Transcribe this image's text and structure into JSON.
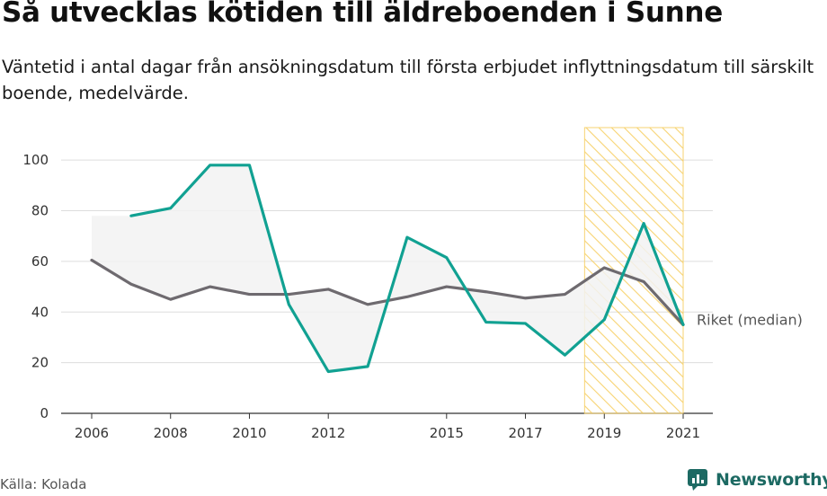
{
  "header": {
    "title": "Så utvecklas kötiden till äldreboenden i Sunne",
    "subtitle": "Väntetid i antal dagar från ansökningsdatum till första erbjudet inflyttningsdatum till särskilt boende, medelvärde."
  },
  "footer": {
    "source": "Källa: Kolada",
    "brand": "Newsworthy"
  },
  "colors": {
    "sunne": "#11a192",
    "riket": "#6e6a6f",
    "highlight_hatch": "#f7cf63",
    "band_fill": "#f2f2f2",
    "grid": "#dddddd",
    "brand": "#1d6a63"
  },
  "chart_data": {
    "type": "line",
    "title": "Så utvecklas kötiden till äldreboenden i Sunne",
    "xlabel": "",
    "ylabel": "",
    "xlim": [
      2006,
      2021
    ],
    "ylim": [
      0,
      110
    ],
    "yticks": [
      0,
      20,
      40,
      60,
      80,
      100
    ],
    "xticks": [
      "2006",
      "2008",
      "2010",
      "2012",
      "2015",
      "2017",
      "2019",
      "2021"
    ],
    "grid": true,
    "highlight_range": [
      2018.5,
      2021
    ],
    "series": [
      {
        "key": "sunne",
        "name": "",
        "x": [
          2007,
          2008,
          2009,
          2010,
          2011,
          2012,
          2013,
          2014,
          2015,
          2016,
          2017,
          2018,
          2019,
          2020,
          2021
        ],
        "values": [
          78,
          81,
          98,
          98,
          43,
          16.5,
          18.5,
          69.5,
          61.5,
          36,
          35.5,
          23,
          37,
          75,
          35
        ]
      },
      {
        "key": "riket",
        "name": "Riket (median)",
        "x": [
          2006,
          2007,
          2008,
          2009,
          2010,
          2011,
          2012,
          2013,
          2014,
          2015,
          2016,
          2017,
          2018,
          2019,
          2020,
          2021
        ],
        "values": [
          60.5,
          51,
          45,
          50,
          47,
          47,
          49,
          43,
          46,
          50,
          48,
          45.5,
          47,
          57.5,
          52,
          35
        ]
      }
    ]
  }
}
